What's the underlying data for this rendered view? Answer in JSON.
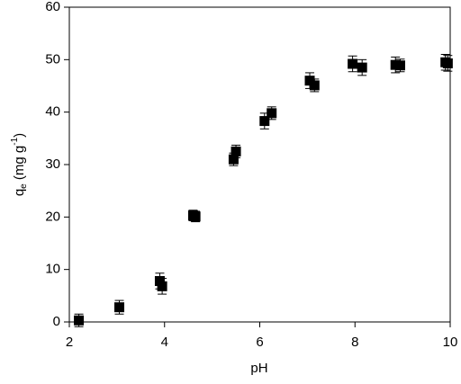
{
  "chart_data": {
    "type": "scatter",
    "x_label": "pH",
    "y_label": {
      "base": "q",
      "sub": "e",
      "unit": " (mg g",
      "sup": "-1",
      "end": ")"
    },
    "x": [
      2.2,
      3.05,
      3.9,
      3.95,
      4.6,
      4.65,
      5.45,
      5.5,
      6.1,
      6.25,
      7.05,
      7.15,
      7.95,
      8.15,
      8.85,
      8.95,
      9.9,
      9.95
    ],
    "series": [
      {
        "color": "#000000",
        "values": [
          0.3,
          2.8,
          7.8,
          6.8,
          20.3,
          20.1,
          31,
          32.5,
          38.3,
          39.8,
          46,
          45.1,
          49.2,
          48.5,
          49,
          48.9,
          49.5,
          49.3
        ],
        "errors": [
          1.2,
          1.3,
          1.5,
          1.5,
          1,
          1,
          1.2,
          1.2,
          1.5,
          1.2,
          1.5,
          1.2,
          1.5,
          1.5,
          1.5,
          1.2,
          1.5,
          1.5
        ]
      }
    ],
    "xlim": [
      2,
      10
    ],
    "xticks": [
      2,
      4,
      6,
      8,
      10
    ],
    "ylim": [
      0,
      60
    ],
    "yticks": [
      0,
      10,
      20,
      30,
      40,
      50,
      60
    ]
  }
}
